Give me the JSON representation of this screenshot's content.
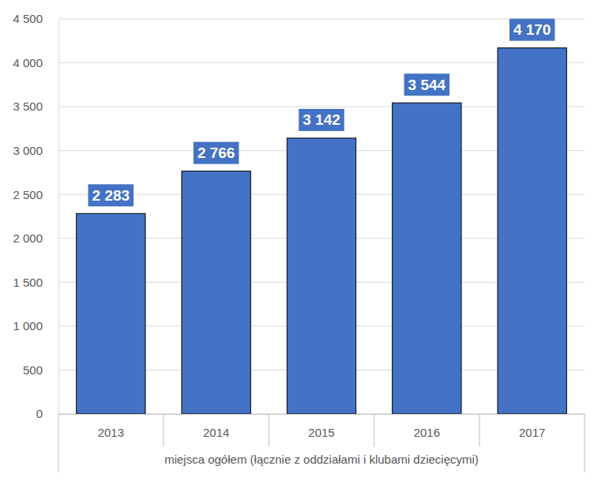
{
  "chart_data": {
    "type": "bar",
    "x_label": "miejsca ogółem (łącznie z oddziałami i klubami dziecięcymi)",
    "categories": [
      "2013",
      "2014",
      "2015",
      "2016",
      "2017"
    ],
    "values": [
      2283,
      2766,
      3142,
      3544,
      4170
    ],
    "value_labels": [
      "2 283",
      "2 766",
      "3 142",
      "3 544",
      "4 170"
    ],
    "color": "#4472c4",
    "ylim": [
      0,
      4500
    ],
    "yticks": [
      0,
      500,
      {
        "value": 1000,
        "label": "1 000"
      },
      {
        "value": 1500,
        "label": "1 500"
      },
      {
        "value": 2000,
        "label": "2 000"
      },
      {
        "value": 2500,
        "label": "2 500"
      },
      {
        "value": 3000,
        "label": "3 000"
      },
      {
        "value": 3500,
        "label": "3 500"
      },
      {
        "value": 4000,
        "label": "4 000"
      },
      {
        "value": 4500,
        "label": "4 500"
      }
    ],
    "grid": true,
    "data_labels": true
  }
}
